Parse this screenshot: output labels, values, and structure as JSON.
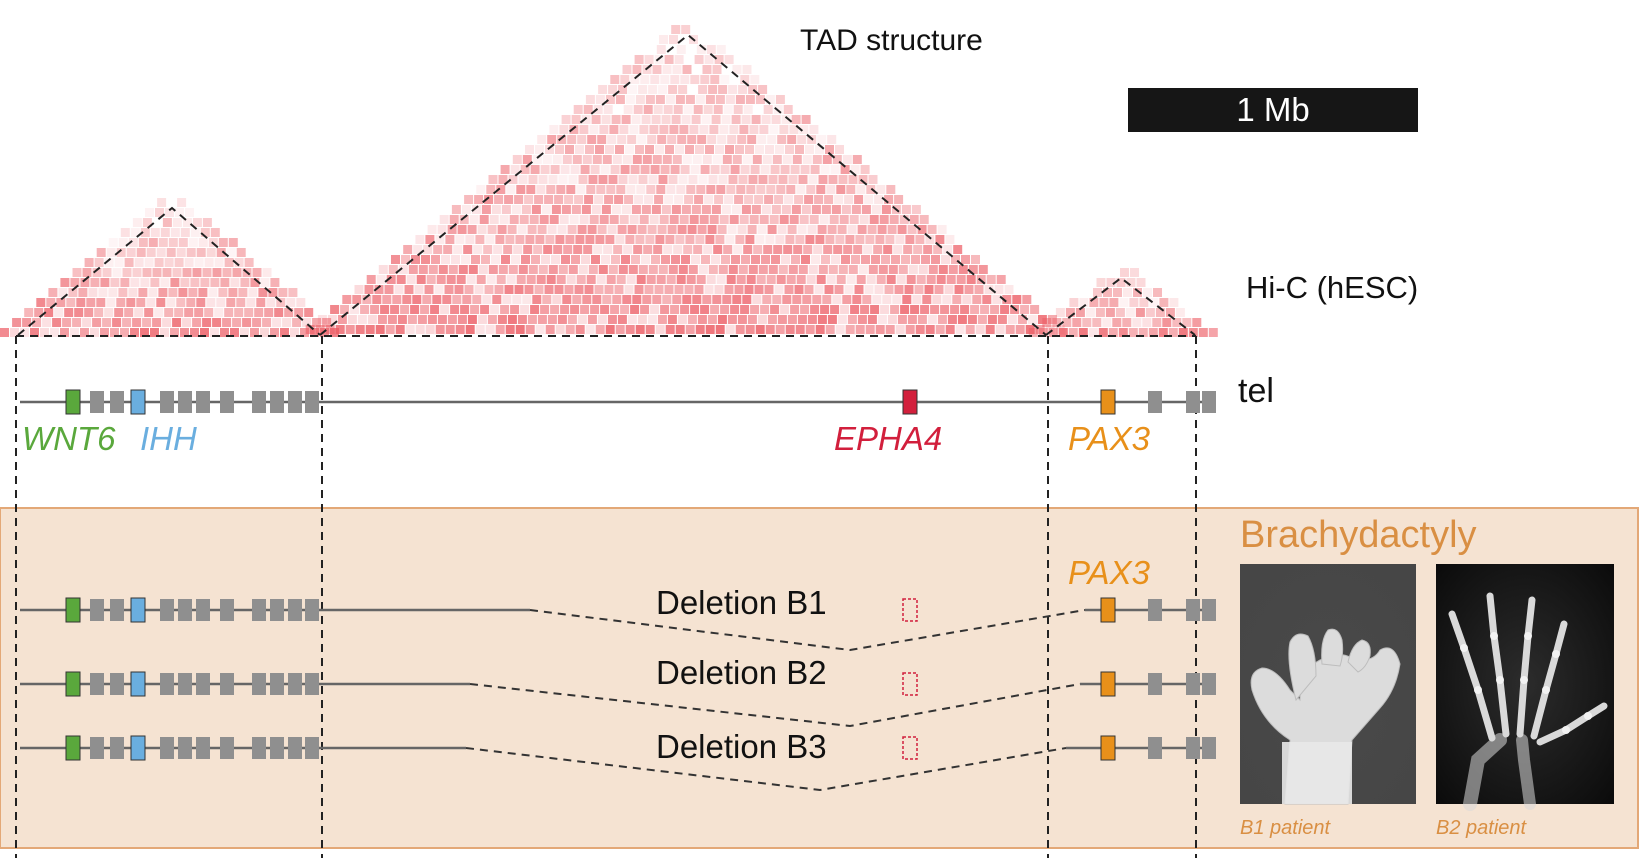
{
  "labels": {
    "tad_structure": "TAD structure",
    "scale_bar": "1 Mb",
    "hic": "Hi-C (hESC)",
    "tel": "tel",
    "brachydactyly": "Brachydactyly",
    "deletion_b1": "Deletion B1",
    "deletion_b2": "Deletion B2",
    "deletion_b3": "Deletion B3",
    "patient_b1": "B1 patient",
    "patient_b2": "B2 patient"
  },
  "genes": [
    {
      "name": "WNT6",
      "color": "#5aa83c"
    },
    {
      "name": "IHH",
      "color": "#6aaedf"
    },
    {
      "name": "EPHA4",
      "color": "#d21f3c"
    },
    {
      "name": "PAX3",
      "color": "#e8901a"
    }
  ],
  "colors": {
    "hic_heat": "#ec5a62",
    "deletion_panel_bg": "#f5e3d2",
    "deletion_panel_border": "#e3a877",
    "gene_gray": "#8f8f8f",
    "brachydactyly_text": "#d98f43",
    "scale_bar_bg": "#161616"
  }
}
